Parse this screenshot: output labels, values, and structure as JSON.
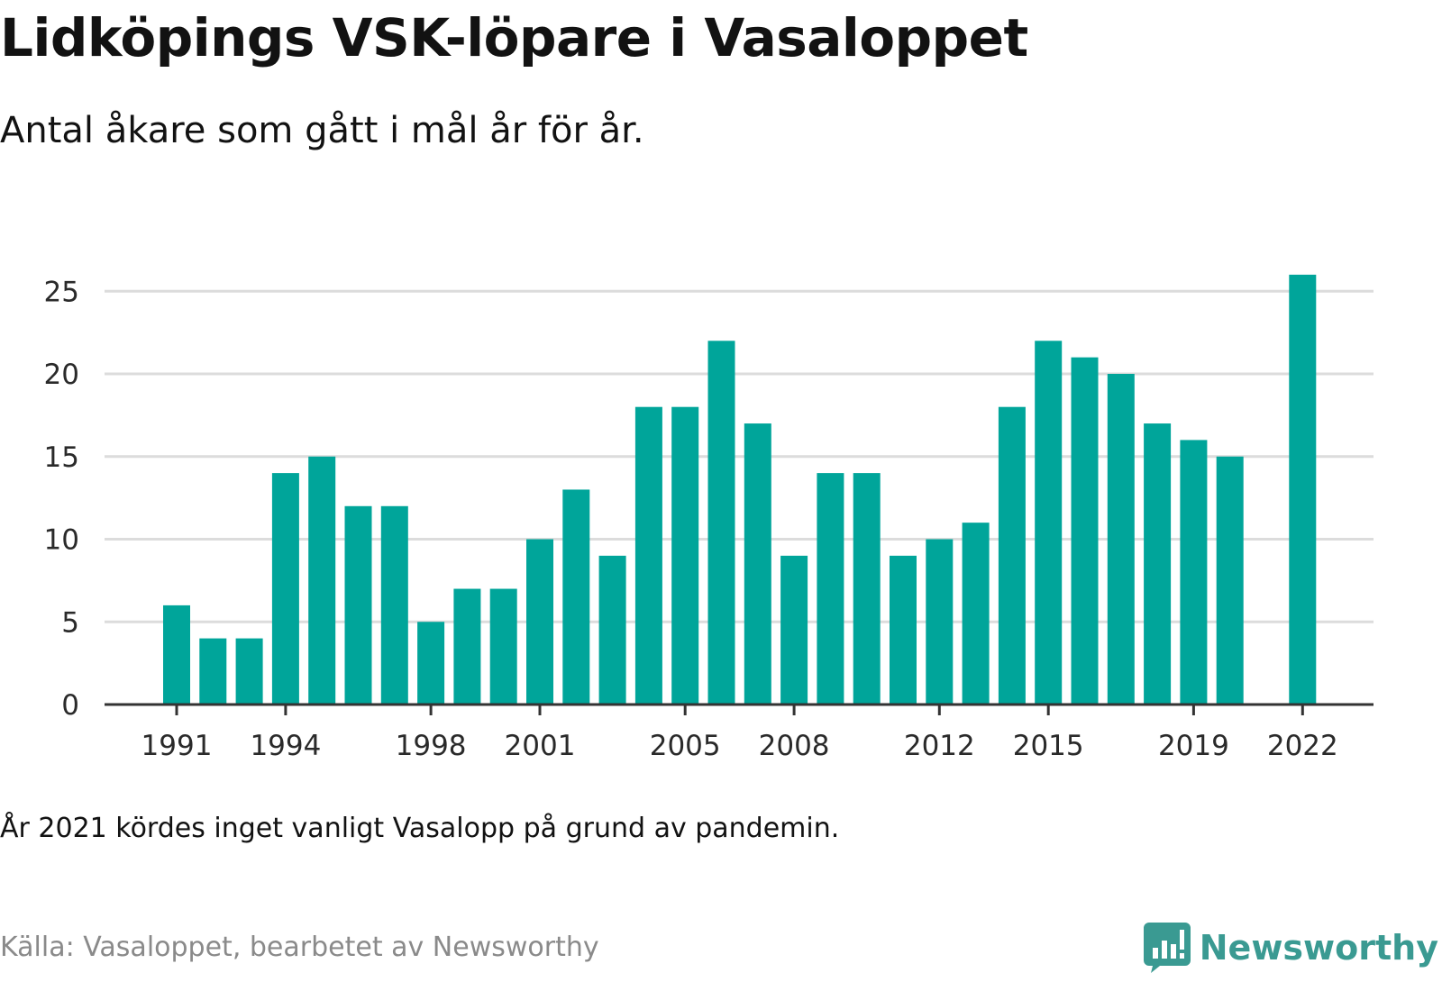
{
  "header": {
    "title": "Lidköpings VSK-löpare i Vasaloppet",
    "subtitle": "Antal åkare som gått i mål år för år."
  },
  "footer": {
    "note": "År 2021 kördes inget vanligt Vasalopp på grund av pandemin.",
    "source": "Källa: Vasaloppet, bearbetet av Newsworthy",
    "brand": "Newsworthy"
  },
  "colors": {
    "bar": "#00a59a",
    "grid": "#dcdcdc",
    "axis": "#333333",
    "brand": "#3a9a92"
  },
  "chart_data": {
    "type": "bar",
    "title": "Lidköpings VSK-löpare i Vasaloppet",
    "subtitle": "Antal åkare som gått i mål år för år.",
    "xlabel": "",
    "ylabel": "",
    "ylim": [
      0,
      27
    ],
    "yticks": [
      0,
      5,
      10,
      15,
      20,
      25
    ],
    "xticks": [
      "1991",
      "1994",
      "1998",
      "2001",
      "2005",
      "2008",
      "2012",
      "2015",
      "2019",
      "2022"
    ],
    "grid": true,
    "legend": "none",
    "categories": [
      "1991",
      "1992",
      "1993",
      "1994",
      "1995",
      "1996",
      "1997",
      "1998",
      "1999",
      "2000",
      "2001",
      "2002",
      "2003",
      "2004",
      "2005",
      "2006",
      "2007",
      "2008",
      "2009",
      "2010",
      "2011",
      "2012",
      "2013",
      "2014",
      "2015",
      "2016",
      "2017",
      "2018",
      "2019",
      "2020",
      "2021",
      "2022"
    ],
    "values": [
      6,
      4,
      4,
      14,
      15,
      12,
      12,
      5,
      7,
      7,
      10,
      13,
      9,
      18,
      18,
      22,
      17,
      9,
      14,
      14,
      9,
      10,
      11,
      18,
      22,
      21,
      20,
      17,
      16,
      15,
      null,
      26
    ]
  }
}
